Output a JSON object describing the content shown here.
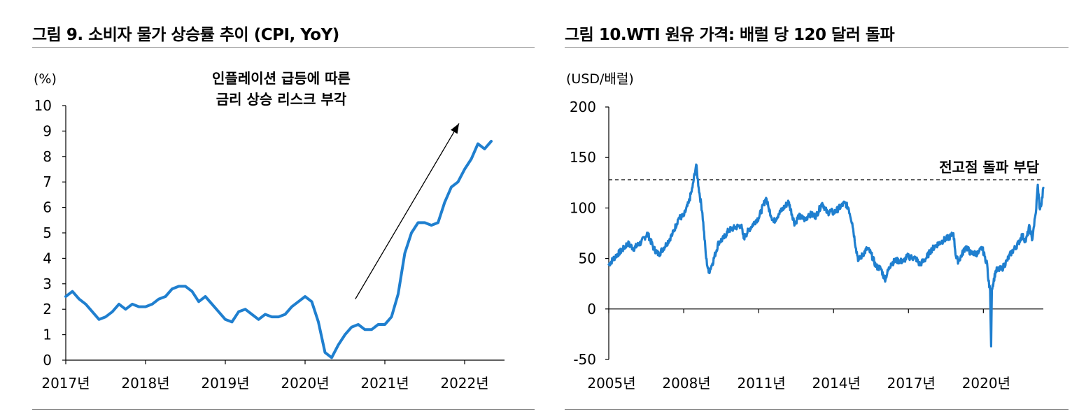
{
  "colors": {
    "series": "#1f7fcf",
    "axis": "#000000",
    "rule": "#888888",
    "arrow": "#000000"
  },
  "left": {
    "title": "그림 9. 소비자 물가 상승률 추이 (CPI, YoY)",
    "chart_data": {
      "type": "line",
      "title": "그림 9. 소비자 물가 상승률 추이 (CPI, YoY)",
      "unit_label": "(%)",
      "ylim": [
        0,
        10
      ],
      "y_ticks": [
        0,
        1,
        2,
        3,
        4,
        5,
        6,
        7,
        8,
        9,
        10
      ],
      "x_range": [
        2017.0,
        2022.5
      ],
      "x_ticks": [
        {
          "value": 2017.0,
          "label": "2017년"
        },
        {
          "value": 2018.0,
          "label": "2018년"
        },
        {
          "value": 2019.0,
          "label": "2019년"
        },
        {
          "value": 2020.0,
          "label": "2020년"
        },
        {
          "value": 2021.0,
          "label": "2021년"
        },
        {
          "value": 2022.0,
          "label": "2022년"
        }
      ],
      "annotation_lines": [
        "인플레이션 급등에 따른",
        "금리 상승 리스크 부각"
      ],
      "arrow": {
        "from": [
          2020.63,
          2.4
        ],
        "to": [
          2021.93,
          9.3
        ]
      },
      "series": [
        {
          "name": "CPI YoY",
          "start": 2017.0,
          "step_months": 1,
          "values": [
            2.5,
            2.7,
            2.4,
            2.2,
            1.9,
            1.6,
            1.7,
            1.9,
            2.2,
            2.0,
            2.2,
            2.1,
            2.1,
            2.2,
            2.4,
            2.5,
            2.8,
            2.9,
            2.9,
            2.7,
            2.3,
            2.5,
            2.2,
            1.9,
            1.6,
            1.5,
            1.9,
            2.0,
            1.8,
            1.6,
            1.8,
            1.7,
            1.7,
            1.8,
            2.1,
            2.3,
            2.5,
            2.3,
            1.5,
            0.3,
            0.1,
            0.6,
            1.0,
            1.3,
            1.4,
            1.2,
            1.2,
            1.4,
            1.4,
            1.7,
            2.6,
            4.2,
            5.0,
            5.4,
            5.4,
            5.3,
            5.4,
            6.2,
            6.8,
            7.0,
            7.5,
            7.9,
            8.5,
            8.3,
            8.6
          ]
        }
      ]
    }
  },
  "right": {
    "title": "그림 10.WTI 원유 가격: 배럴 당 120 달러 돌파",
    "chart_data": {
      "type": "line",
      "title": "그림 10.WTI 원유 가격: 배럴 당 120 달러 돌파",
      "unit_label": "(USD/배럴)",
      "ylim": [
        -50,
        200
      ],
      "y_ticks": [
        -50,
        0,
        50,
        100,
        150,
        200
      ],
      "x_range": [
        2005.0,
        2022.4
      ],
      "x_ticks": [
        {
          "value": 2005.0,
          "label": "2005년"
        },
        {
          "value": 2008.0,
          "label": "2008년"
        },
        {
          "value": 2011.0,
          "label": "2011년"
        },
        {
          "value": 2014.0,
          "label": "2014년"
        },
        {
          "value": 2017.0,
          "label": "2017년"
        },
        {
          "value": 2020.0,
          "label": "2020년"
        }
      ],
      "reference_line": {
        "value": 128,
        "label": "전고점 돌파 부담",
        "style": "dashed"
      },
      "series": [
        {
          "name": "WTI",
          "points": [
            [
              2005.0,
              44
            ],
            [
              2005.3,
              53
            ],
            [
              2005.6,
              60
            ],
            [
              2005.75,
              65
            ],
            [
              2006.0,
              60
            ],
            [
              2006.3,
              66
            ],
            [
              2006.55,
              75
            ],
            [
              2006.8,
              60
            ],
            [
              2007.0,
              54
            ],
            [
              2007.3,
              64
            ],
            [
              2007.55,
              74
            ],
            [
              2007.8,
              90
            ],
            [
              2008.0,
              92
            ],
            [
              2008.2,
              105
            ],
            [
              2008.35,
              120
            ],
            [
              2008.5,
              143
            ],
            [
              2008.6,
              120
            ],
            [
              2008.75,
              95
            ],
            [
              2008.9,
              50
            ],
            [
              2009.0,
              36
            ],
            [
              2009.15,
              45
            ],
            [
              2009.4,
              66
            ],
            [
              2009.6,
              70
            ],
            [
              2009.8,
              78
            ],
            [
              2010.0,
              80
            ],
            [
              2010.3,
              83
            ],
            [
              2010.4,
              70
            ],
            [
              2010.6,
              78
            ],
            [
              2010.9,
              88
            ],
            [
              2011.0,
              90
            ],
            [
              2011.3,
              110
            ],
            [
              2011.4,
              100
            ],
            [
              2011.6,
              86
            ],
            [
              2011.8,
              94
            ],
            [
              2012.0,
              100
            ],
            [
              2012.2,
              106
            ],
            [
              2012.45,
              84
            ],
            [
              2012.6,
              92
            ],
            [
              2012.9,
              88
            ],
            [
              2013.0,
              94
            ],
            [
              2013.3,
              92
            ],
            [
              2013.55,
              105
            ],
            [
              2013.75,
              95
            ],
            [
              2013.9,
              97
            ],
            [
              2014.0,
              95
            ],
            [
              2014.45,
              105
            ],
            [
              2014.6,
              100
            ],
            [
              2014.75,
              85
            ],
            [
              2014.9,
              60
            ],
            [
              2015.0,
              48
            ],
            [
              2015.35,
              60
            ],
            [
              2015.5,
              55
            ],
            [
              2015.7,
              42
            ],
            [
              2015.9,
              40
            ],
            [
              2016.05,
              29
            ],
            [
              2016.3,
              45
            ],
            [
              2016.5,
              48
            ],
            [
              2016.8,
              47
            ],
            [
              2016.95,
              52
            ],
            [
              2017.3,
              50
            ],
            [
              2017.45,
              44
            ],
            [
              2017.7,
              50
            ],
            [
              2017.9,
              58
            ],
            [
              2018.1,
              63
            ],
            [
              2018.4,
              68
            ],
            [
              2018.7,
              72
            ],
            [
              2018.8,
              75
            ],
            [
              2018.9,
              52
            ],
            [
              2019.0,
              47
            ],
            [
              2019.3,
              62
            ],
            [
              2019.5,
              55
            ],
            [
              2019.8,
              55
            ],
            [
              2019.95,
              61
            ],
            [
              2020.05,
              52
            ],
            [
              2020.15,
              45
            ],
            [
              2020.2,
              28
            ],
            [
              2020.27,
              18
            ],
            [
              2020.31,
              -37
            ],
            [
              2020.34,
              20
            ],
            [
              2020.5,
              38
            ],
            [
              2020.75,
              40
            ],
            [
              2020.95,
              48
            ],
            [
              2021.1,
              55
            ],
            [
              2021.4,
              65
            ],
            [
              2021.55,
              73
            ],
            [
              2021.7,
              67
            ],
            [
              2021.85,
              82
            ],
            [
              2021.95,
              68
            ],
            [
              2022.0,
              78
            ],
            [
              2022.1,
              95
            ],
            [
              2022.18,
              123
            ],
            [
              2022.25,
              100
            ],
            [
              2022.33,
              104
            ],
            [
              2022.4,
              120
            ]
          ]
        }
      ]
    }
  }
}
